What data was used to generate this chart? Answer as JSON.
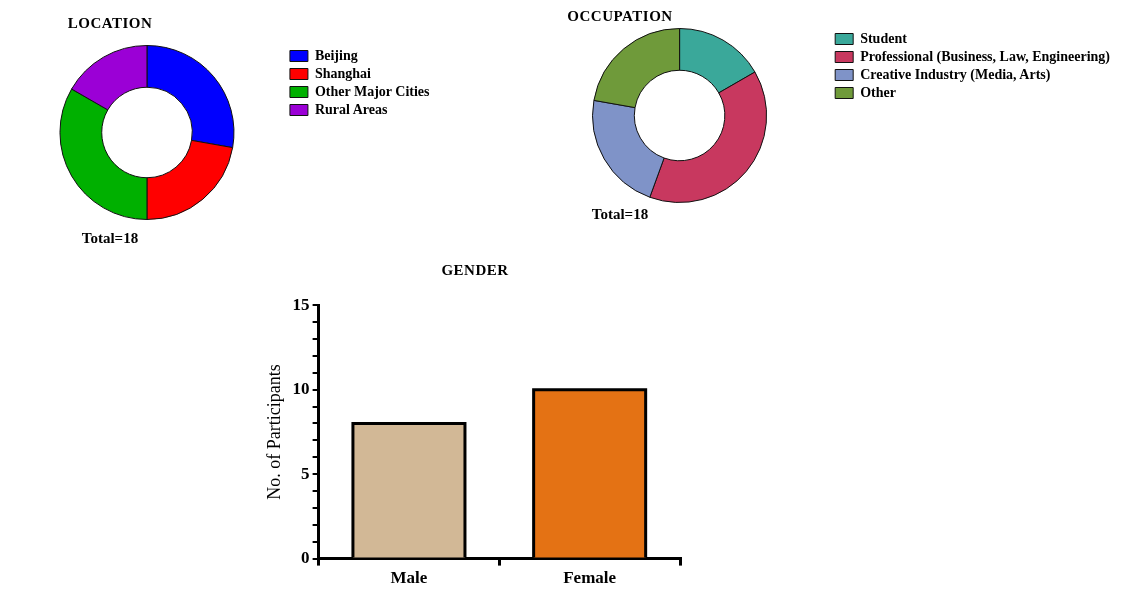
{
  "chart_data": [
    {
      "type": "donut",
      "title": "LOCATION",
      "categories": [
        "Beijing",
        "Shanghai",
        "Other Major Cities",
        "Rural Areas"
      ],
      "values": [
        27.78,
        22.22,
        33.33,
        16.67
      ],
      "colors": [
        "#0000ff",
        "#ff0000",
        "#00b000",
        "#9b00d6"
      ],
      "legend": "right",
      "annotations": [
        "Total=18"
      ]
    },
    {
      "type": "donut",
      "title": "OCCUPATION",
      "categories": [
        "Student",
        "Professional (Business, Law, Engineering)",
        "Creative Industry (Media, Arts)",
        "Other"
      ],
      "values": [
        16.67,
        38.89,
        22.22,
        22.22
      ],
      "colors": [
        "#3aa89a",
        "#c8385f",
        "#7f93c8",
        "#6f9a3a"
      ],
      "legend": "right",
      "annotations": [
        "Total=18"
      ]
    },
    {
      "type": "bar",
      "title": "GENDER",
      "ylabel": "No. of Participants",
      "categories": [
        "Male",
        "Female"
      ],
      "values": [
        8,
        10
      ],
      "colors": [
        "#d2b896",
        "#e47214"
      ],
      "ylim": [
        0,
        15
      ],
      "yticks": [
        0,
        {
          "value": 1,
          "label": null
        },
        {
          "value": 2,
          "label": null
        },
        {
          "value": 3,
          "label": null
        },
        {
          "value": 4,
          "label": null
        },
        5,
        {
          "value": 6,
          "label": null
        },
        {
          "value": 7,
          "label": null
        },
        {
          "value": 8,
          "label": null
        },
        {
          "value": 9,
          "label": null
        },
        10,
        {
          "value": 11,
          "label": null
        },
        {
          "value": 12,
          "label": null
        },
        {
          "value": 13,
          "label": null
        },
        {
          "value": 14,
          "label": null
        },
        15
      ],
      "grid": false,
      "legend": false
    }
  ]
}
